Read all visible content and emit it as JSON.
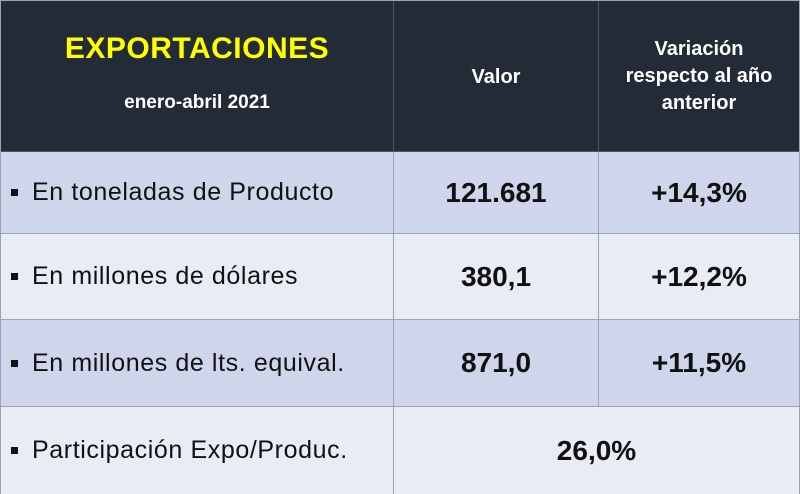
{
  "header": {
    "title": "EXPORTACIONES",
    "subtitle": "enero-abril 2021",
    "col_valor": "Valor",
    "col_variacion_lines": [
      "Variación",
      "respecto al año",
      "anterior"
    ]
  },
  "rows": [
    {
      "label": "En toneladas de Producto",
      "valor": "121.681",
      "variacion": "+14,3%"
    },
    {
      "label": "En millones de dólares",
      "valor": "380,1",
      "variacion": "+12,2%"
    },
    {
      "label": "En millones de lts. equival.",
      "valor": "871,0",
      "variacion": "+11,5%"
    },
    {
      "label": "Participación Expo/Produc.",
      "valor": "26,0%"
    }
  ],
  "colors": {
    "header_bg": "#232b37",
    "title": "#ffff00",
    "row_dark": "#cfd5ea",
    "row_light": "#e9ebf5"
  }
}
